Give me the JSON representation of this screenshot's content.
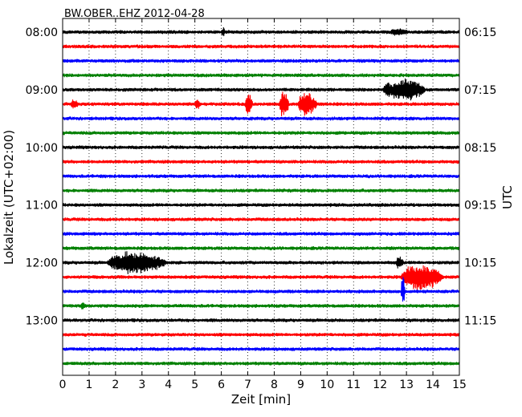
{
  "chart_data": {
    "type": "line",
    "title": "BW.OBER..EHZ 2012-04-28",
    "xlabel": "Zeit  [min]",
    "ylabel_left": "Lokalzeit (UTC+02:00)",
    "ylabel_right": "UTC",
    "xlim": [
      0,
      15
    ],
    "x_ticks": [
      "0",
      "1",
      "2",
      "3",
      "4",
      "5",
      "6",
      "7",
      "8",
      "9",
      "10",
      "11",
      "12",
      "13",
      "14",
      "15"
    ],
    "grid": "vertical dotted",
    "row_interval_min": 15,
    "row_count": 24,
    "left_tick_labels": [
      {
        "row": 0,
        "label": "08:00"
      },
      {
        "row": 4,
        "label": "09:00"
      },
      {
        "row": 8,
        "label": "10:00"
      },
      {
        "row": 12,
        "label": "11:00"
      },
      {
        "row": 16,
        "label": "12:00"
      },
      {
        "row": 20,
        "label": "13:00"
      }
    ],
    "right_tick_labels": [
      {
        "row": 0,
        "label": "06:15"
      },
      {
        "row": 4,
        "label": "07:15"
      },
      {
        "row": 8,
        "label": "08:15"
      },
      {
        "row": 12,
        "label": "09:15"
      },
      {
        "row": 16,
        "label": "10:15"
      },
      {
        "row": 20,
        "label": "11:15"
      }
    ],
    "colors": [
      "#000000",
      "#ff0000",
      "#0000ff",
      "#008000"
    ],
    "noise_amplitude": 0.16,
    "events": [
      {
        "row": 0,
        "start_min": 6.0,
        "end_min": 6.2,
        "amp": 0.4
      },
      {
        "row": 0,
        "start_min": 12.4,
        "end_min": 13.3,
        "amp": 0.3
      },
      {
        "row": 4,
        "start_min": 12.5,
        "end_min": 14.2,
        "amp": 1.3
      },
      {
        "row": 4,
        "start_min": 12.1,
        "end_min": 12.9,
        "amp": 0.8
      },
      {
        "row": 5,
        "start_min": 0.3,
        "end_min": 0.7,
        "amp": 0.5
      },
      {
        "row": 5,
        "start_min": 5.0,
        "end_min": 5.3,
        "amp": 0.5
      },
      {
        "row": 5,
        "start_min": 6.9,
        "end_min": 7.3,
        "amp": 1.3
      },
      {
        "row": 5,
        "start_min": 8.2,
        "end_min": 8.7,
        "amp": 1.6
      },
      {
        "row": 5,
        "start_min": 8.9,
        "end_min": 9.9,
        "amp": 1.4
      },
      {
        "row": 16,
        "start_min": 1.7,
        "end_min": 4.8,
        "amp": 1.3
      },
      {
        "row": 17,
        "start_min": 12.8,
        "end_min": 15.0,
        "amp": 1.7
      },
      {
        "row": 18,
        "start_min": 12.8,
        "end_min": 13.0,
        "amp": 1.8
      },
      {
        "row": 19,
        "start_min": 0.7,
        "end_min": 0.9,
        "amp": 0.5
      },
      {
        "row": 16,
        "start_min": 12.6,
        "end_min": 13.0,
        "amp": 0.6
      }
    ]
  }
}
